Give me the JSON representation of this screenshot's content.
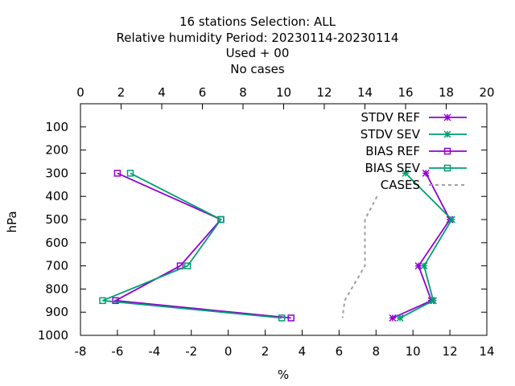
{
  "chart_data": {
    "type": "line",
    "title_lines": [
      "16 stations Selection: ALL",
      "Relative humidity  Period: 20230114-20230114",
      "Used   + 00",
      "No cases"
    ],
    "xlabel": "%",
    "ylabel": "hPa",
    "x_bottom": {
      "range": [
        -8,
        14
      ],
      "ticks": [
        -8,
        -6,
        -4,
        -2,
        0,
        2,
        4,
        6,
        8,
        10,
        12,
        14
      ]
    },
    "x_top": {
      "range": [
        0,
        20
      ],
      "ticks": [
        0,
        2,
        4,
        6,
        8,
        10,
        12,
        14,
        16,
        18,
        20
      ]
    },
    "y": {
      "range": [
        1000,
        0
      ],
      "ticks": [
        100,
        200,
        300,
        400,
        500,
        600,
        700,
        800,
        900,
        1000
      ]
    },
    "grid": false,
    "legend_position": "top-right",
    "series": [
      {
        "name": "STDV REF",
        "color": "#9400d3",
        "marker": "star",
        "axis": "bottom",
        "points": [
          [
            10.7,
            300
          ],
          [
            12.0,
            500
          ],
          [
            10.3,
            700
          ],
          [
            11.0,
            850
          ],
          [
            8.9,
            925
          ]
        ]
      },
      {
        "name": "STDV SEV",
        "color": "#009e73",
        "marker": "star",
        "axis": "bottom",
        "points": [
          [
            9.6,
            300
          ],
          [
            12.1,
            500
          ],
          [
            10.6,
            700
          ],
          [
            11.1,
            850
          ],
          [
            9.3,
            925
          ]
        ]
      },
      {
        "name": "BIAS REF",
        "color": "#9400d3",
        "marker": "square",
        "axis": "bottom",
        "points": [
          [
            -6.0,
            300
          ],
          [
            -0.4,
            500
          ],
          [
            -2.6,
            700
          ],
          [
            -6.1,
            850
          ],
          [
            3.4,
            925
          ]
        ]
      },
      {
        "name": "BIAS SEV",
        "color": "#009e73",
        "marker": "square",
        "axis": "bottom",
        "points": [
          [
            -5.3,
            300
          ],
          [
            -0.4,
            500
          ],
          [
            -2.2,
            700
          ],
          [
            -6.8,
            850
          ],
          [
            2.9,
            925
          ]
        ]
      },
      {
        "name": "CASES",
        "color": "#a0a0a0",
        "marker": "none",
        "axis": "top",
        "dashed": true,
        "points": [
          [
            14.6,
            400
          ],
          [
            14.0,
            500
          ],
          [
            14.0,
            700
          ],
          [
            13.0,
            850
          ],
          [
            12.9,
            925
          ]
        ]
      }
    ]
  }
}
